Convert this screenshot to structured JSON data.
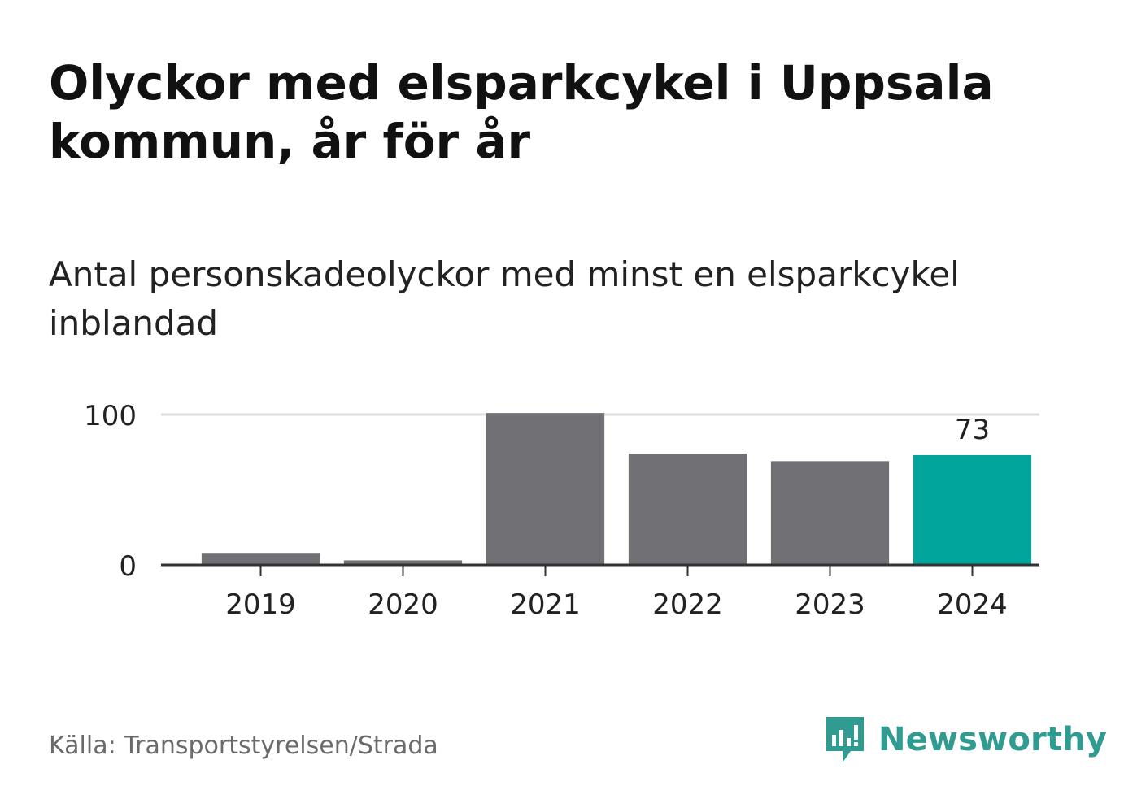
{
  "title": "Olyckor med elsparkcykel i Uppsala kommun, år för år",
  "subtitle": "Antal personskadeolyckor med minst en elsparkcykel inblandad",
  "source": "Källa: Transportstyrelsen/Strada",
  "brand": {
    "name": "Newsworthy",
    "icon": "newsworthy-logo-icon"
  },
  "colors": {
    "bar": "#717075",
    "highlight": "#00a49a",
    "gridline": "#dddddd",
    "axis": "#333333",
    "brand": "#2f9b91"
  },
  "chart_data": {
    "type": "bar",
    "categories": [
      "2019",
      "2020",
      "2021",
      "2022",
      "2023",
      "2024"
    ],
    "values": [
      8,
      3,
      101,
      74,
      69,
      73
    ],
    "highlight_index": 5,
    "data_labels": [
      {
        "index": 5,
        "text": "73"
      }
    ],
    "yticks": [
      0,
      100
    ],
    "ytick_labels": [
      "0",
      "100"
    ],
    "ylim": [
      0,
      100
    ],
    "grid": true,
    "legend": "none"
  }
}
